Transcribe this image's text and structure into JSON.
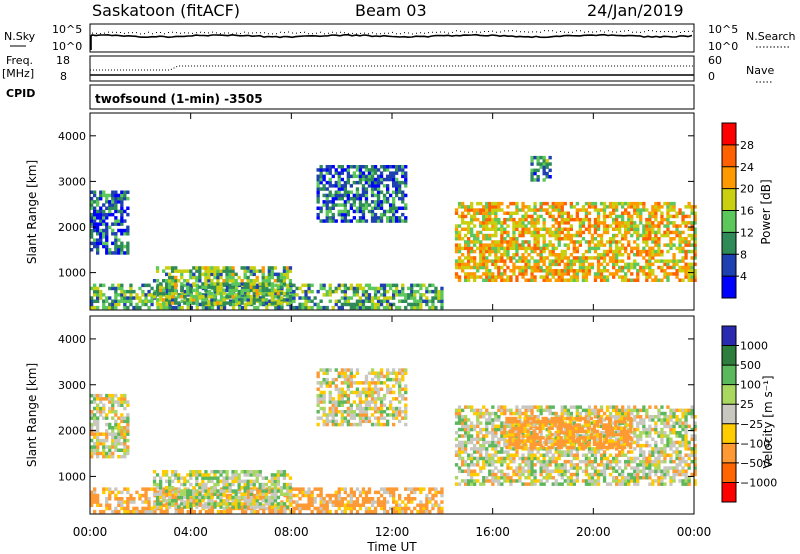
{
  "header": {
    "site": "Saskatoon (fitACF)",
    "beam": "Beam 03",
    "date": "24/Jan/2019"
  },
  "top_panels": {
    "nsky_label": "N.Sky",
    "nsky_ticks": [
      "10^5",
      "10^0"
    ],
    "nsearch_label": "N.Search",
    "nsearch_ticks": [
      "10^5",
      "10^0"
    ],
    "freq_label": "Freq.",
    "freq_unit": "[MHz]",
    "freq_ticks": [
      "18",
      "8"
    ],
    "nave_label": "Nave",
    "nave_ticks": [
      "60",
      "0"
    ],
    "cpid_label": "CPID",
    "cpid_text": "twofsound (1-min) -3505"
  },
  "colors": {
    "power": [
      "#0000ff",
      "#1e40b0",
      "#2e8b57",
      "#5cc85c",
      "#c8d010",
      "#ff9900",
      "#ff6000",
      "#ff0000"
    ],
    "velocity": [
      "#2a2ab0",
      "#2d7d3d",
      "#5cb85c",
      "#a8d860",
      "#c8c8c0",
      "#ffcc00",
      "#ff9933",
      "#ff6600",
      "#ff0000"
    ],
    "ground_scatter": "#c8c8c0"
  },
  "chart_data": [
    {
      "type": "heatmap",
      "name": "power",
      "ylabel": "Slant Range [km]",
      "ylim": [
        180,
        4500
      ],
      "yticks": [
        1000,
        2000,
        3000,
        4000
      ],
      "xlim": [
        0,
        24
      ],
      "colorbar": {
        "label": "Power [dB]",
        "ticks": [
          "28",
          "24",
          "20",
          "16",
          "12",
          "8",
          "4"
        ],
        "range": [
          0,
          32
        ]
      },
      "regions": [
        {
          "t0": 0.0,
          "t1": 1.5,
          "r0": 1400,
          "r1": 2800,
          "v": 7
        },
        {
          "t0": 0.0,
          "t1": 14.0,
          "r0": 200,
          "r1": 700,
          "v": 12
        },
        {
          "t0": 2.5,
          "t1": 8.0,
          "r0": 300,
          "r1": 1100,
          "v": 14
        },
        {
          "t0": 9.0,
          "t1": 12.5,
          "r0": 2100,
          "r1": 3300,
          "v": 8
        },
        {
          "t0": 14.5,
          "t1": 24.0,
          "r0": 800,
          "r1": 2500,
          "v": 20
        },
        {
          "t0": 17.5,
          "t1": 18.3,
          "r0": 3000,
          "r1": 3500,
          "v": 10
        }
      ]
    },
    {
      "type": "heatmap",
      "name": "velocity",
      "ylabel": "Slant Range [km]",
      "ylim": [
        180,
        4500
      ],
      "yticks": [
        1000,
        2000,
        3000,
        4000
      ],
      "xlim": [
        0,
        24
      ],
      "xlabel": "Time UT",
      "xticks": [
        "00:00",
        "04:00",
        "08:00",
        "12:00",
        "16:00",
        "20:00",
        "00:00"
      ],
      "colorbar": {
        "label": "Velocity [m s⁻¹]",
        "ticks": [
          "1000",
          "500",
          "100",
          "25",
          "−25",
          "−100",
          "−500",
          "−1000"
        ],
        "range": [
          -1000,
          1000
        ]
      },
      "regions": [
        {
          "t0": 0.0,
          "t1": 1.5,
          "r0": 1400,
          "r1": 2800,
          "v": 0
        },
        {
          "t0": 0.0,
          "t1": 14.0,
          "r0": 200,
          "r1": 700,
          "v": -150
        },
        {
          "t0": 2.5,
          "t1": 8.0,
          "r0": 300,
          "r1": 1100,
          "v": 50
        },
        {
          "t0": 9.0,
          "t1": 12.5,
          "r0": 2100,
          "r1": 3300,
          "v": 0
        },
        {
          "t0": 14.5,
          "t1": 24.0,
          "r0": 800,
          "r1": 2500,
          "v": 0
        },
        {
          "t0": 16.5,
          "t1": 21.5,
          "r0": 1600,
          "r1": 2300,
          "v": -200
        }
      ]
    }
  ]
}
